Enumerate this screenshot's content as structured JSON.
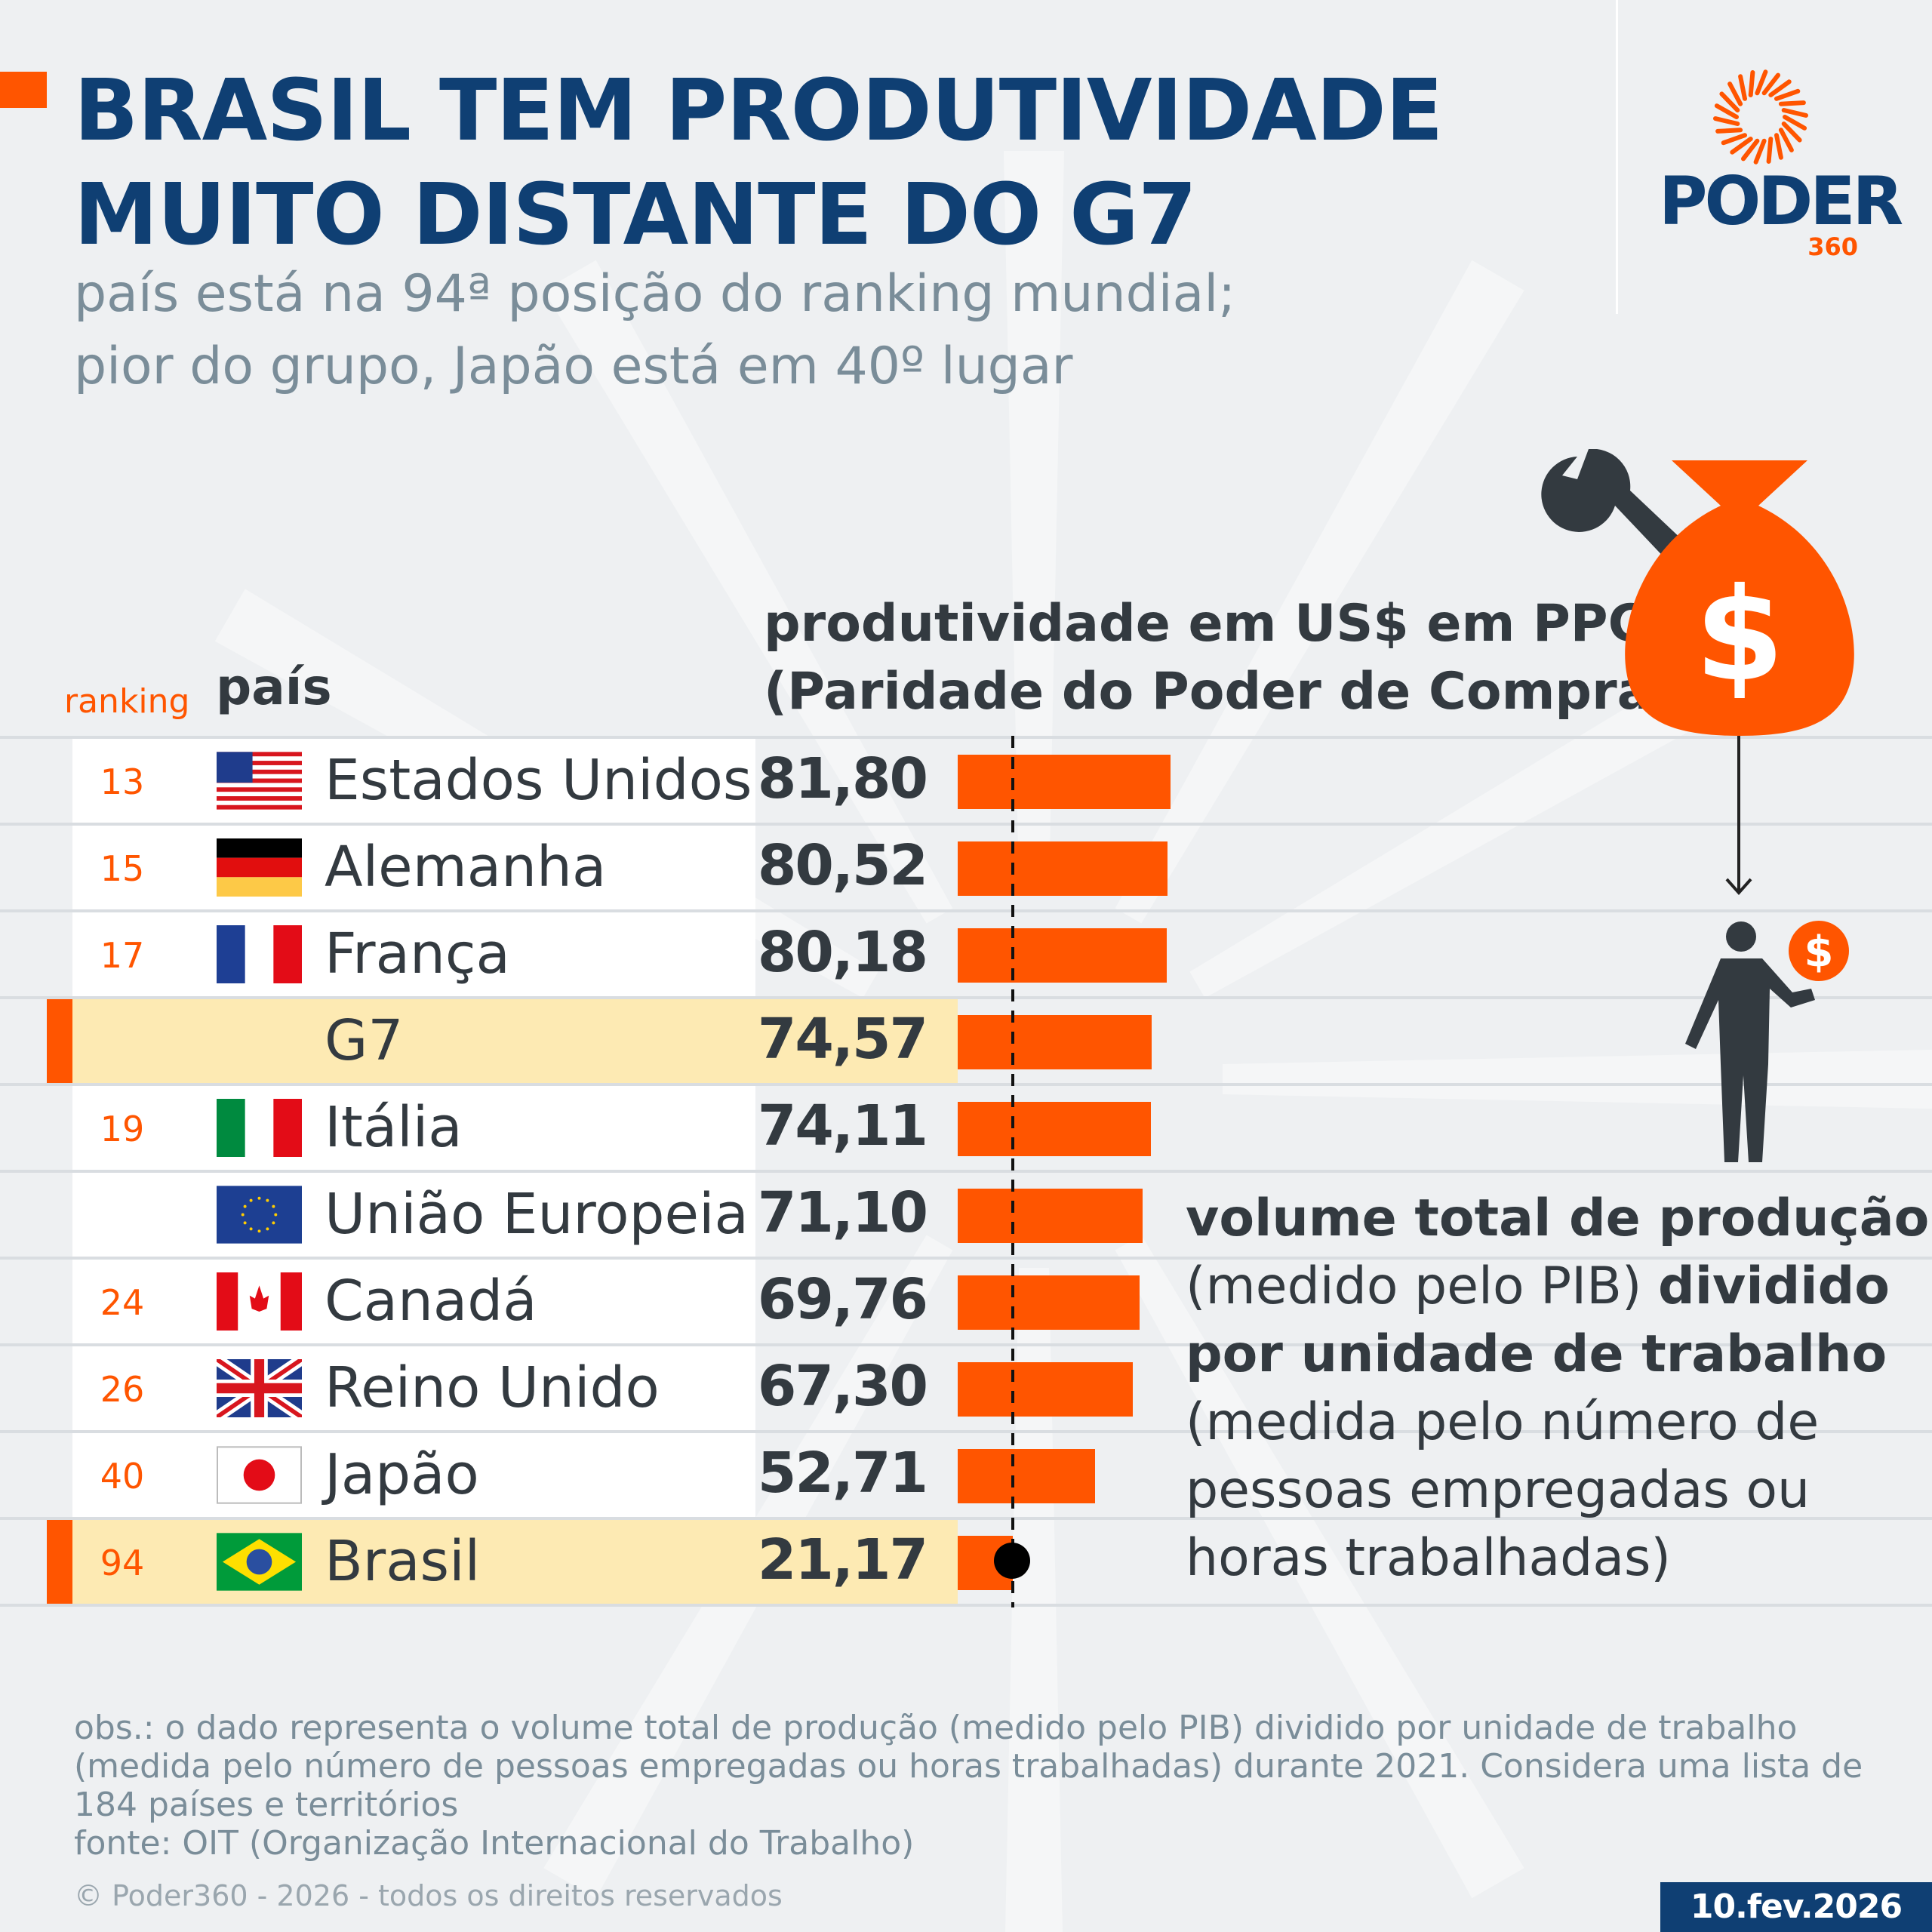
{
  "header": {
    "title_line1": "BRASIL TEM PRODUTIVIDADE",
    "title_line2": "MUITO DISTANTE DO G7",
    "subtitle_line1": "país está na 94ª posição do ranking mundial;",
    "subtitle_line2": "pior do grupo, Japão está em 40º lugar"
  },
  "logo": {
    "name": "PODER",
    "number": "360"
  },
  "colors": {
    "accent": "#ff5500",
    "title": "#0f3f73",
    "highlight": "#fdeab3",
    "subtitle": "#7a8d99"
  },
  "chart_data": {
    "type": "bar",
    "orientation": "horizontal",
    "columns": {
      "ranking": "ranking",
      "country": "país",
      "value_line1": "produtividade em US$ em PPC",
      "value_line2": "(Paridade do Poder de Compra)"
    },
    "reference_line": {
      "value": 21.17,
      "style": "dashed",
      "label_row": "Brasil"
    },
    "rows": [
      {
        "rank": "13",
        "country": "Estados Unidos",
        "flag": "us-flag",
        "value": 81.8,
        "label": "81,80",
        "highlight": false
      },
      {
        "rank": "15",
        "country": "Alemanha",
        "flag": "germany-flag",
        "value": 80.52,
        "label": "80,52",
        "highlight": false
      },
      {
        "rank": "17",
        "country": "França",
        "flag": "france-flag",
        "value": 80.18,
        "label": "80,18",
        "highlight": false
      },
      {
        "rank": "",
        "country": "G7",
        "flag": "",
        "value": 74.57,
        "label": "74,57",
        "highlight": true
      },
      {
        "rank": "19",
        "country": "Itália",
        "flag": "italy-flag",
        "value": 74.11,
        "label": "74,11",
        "highlight": false
      },
      {
        "rank": "",
        "country": "União Europeia",
        "flag": "eu-flag",
        "value": 71.1,
        "label": "71,10",
        "highlight": false
      },
      {
        "rank": "24",
        "country": "Canadá",
        "flag": "canada-flag",
        "value": 69.76,
        "label": "69,76",
        "highlight": false
      },
      {
        "rank": "26",
        "country": "Reino Unido",
        "flag": "uk-flag",
        "value": 67.3,
        "label": "67,30",
        "highlight": false
      },
      {
        "rank": "40",
        "country": "Japão",
        "flag": "japan-flag",
        "value": 52.71,
        "label": "52,71",
        "highlight": false
      },
      {
        "rank": "94",
        "country": "Brasil",
        "flag": "brazil-flag",
        "value": 21.17,
        "label": "21,17",
        "highlight": true
      }
    ]
  },
  "explanation": {
    "l1b": "volume total de produção",
    "l2a": "(medido pelo PIB) ",
    "l2b": "dividido",
    "l3b": "por unidade de trabalho",
    "l4": "(medida pelo número de",
    "l5": "pessoas empregadas ou",
    "l6": "horas trabalhadas)",
    "icons": [
      "wrench-icon",
      "money-bag-icon",
      "arrow-down-icon",
      "person-holding-coin-icon"
    ],
    "bag_symbol": "$",
    "coin_symbol": "$"
  },
  "footer": {
    "obs": "obs.: o dado representa o volume total de produção (medido pelo PIB) dividido por unidade de trabalho (medida pelo número de pessoas empregadas ou horas trabalhadas) durante 2021. Considera uma lista de 184 países e territórios",
    "source": "fonte: OIT (Organização Internacional do Trabalho)",
    "copyright": "© Poder360 - 2026 - todos os direitos reservados",
    "date": "10.fev.2026"
  }
}
